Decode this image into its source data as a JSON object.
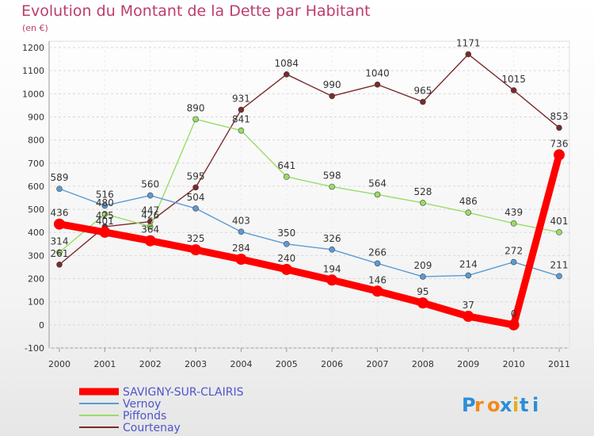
{
  "chart_data": {
    "type": "line",
    "title": "Evolution du Montant de la Dette par Habitant",
    "subtitle": "(en €)",
    "x": [
      "2000",
      "2001",
      "2002",
      "2003",
      "2004",
      "2005",
      "2006",
      "2007",
      "2008",
      "2009",
      "2010",
      "2011"
    ],
    "ylim": [
      -100,
      1200
    ],
    "yticks": [
      -100,
      0,
      100,
      200,
      300,
      400,
      500,
      600,
      700,
      800,
      900,
      1000,
      1100,
      1200
    ],
    "grid": true,
    "legend_position": "bottom-left",
    "series": [
      {
        "name": "SAVIGNY-SUR-CLAIRIS",
        "color": "#ff0000",
        "values": [
          436,
          401,
          364,
          325,
          284,
          240,
          194,
          146,
          95,
          37,
          0,
          736
        ]
      },
      {
        "name": "Vernoy",
        "color": "#5b9bd5",
        "values": [
          589,
          516,
          560,
          504,
          403,
          350,
          326,
          266,
          209,
          214,
          272,
          211
        ]
      },
      {
        "name": "Piffonds",
        "color": "#99dd66",
        "values": [
          314,
          480,
          426,
          890,
          841,
          641,
          598,
          564,
          528,
          486,
          439,
          401
        ]
      },
      {
        "name": "Courtenay",
        "color": "#7a2a2a",
        "values": [
          261,
          425,
          447,
          595,
          931,
          1084,
          990,
          1040,
          965,
          1171,
          1015,
          853
        ]
      }
    ],
    "data_labels": [
      [
        "436",
        "401",
        "364",
        "325",
        "284",
        "240",
        "194",
        "146",
        "95",
        "37",
        "0",
        "736"
      ],
      [
        "589",
        "516",
        "560",
        "504",
        "403",
        "350",
        "326",
        "266",
        "209",
        "214",
        "272",
        "211"
      ],
      [
        "314",
        "480",
        "426",
        "890",
        "841",
        "641",
        "598",
        "564",
        "528",
        "486",
        "439",
        "401"
      ],
      [
        "261",
        "425",
        "447",
        "595",
        "931",
        "1084",
        "990",
        "1040",
        "965",
        "1171",
        "1015",
        "853"
      ]
    ]
  },
  "brand": {
    "logo_text": "Proxiti"
  }
}
